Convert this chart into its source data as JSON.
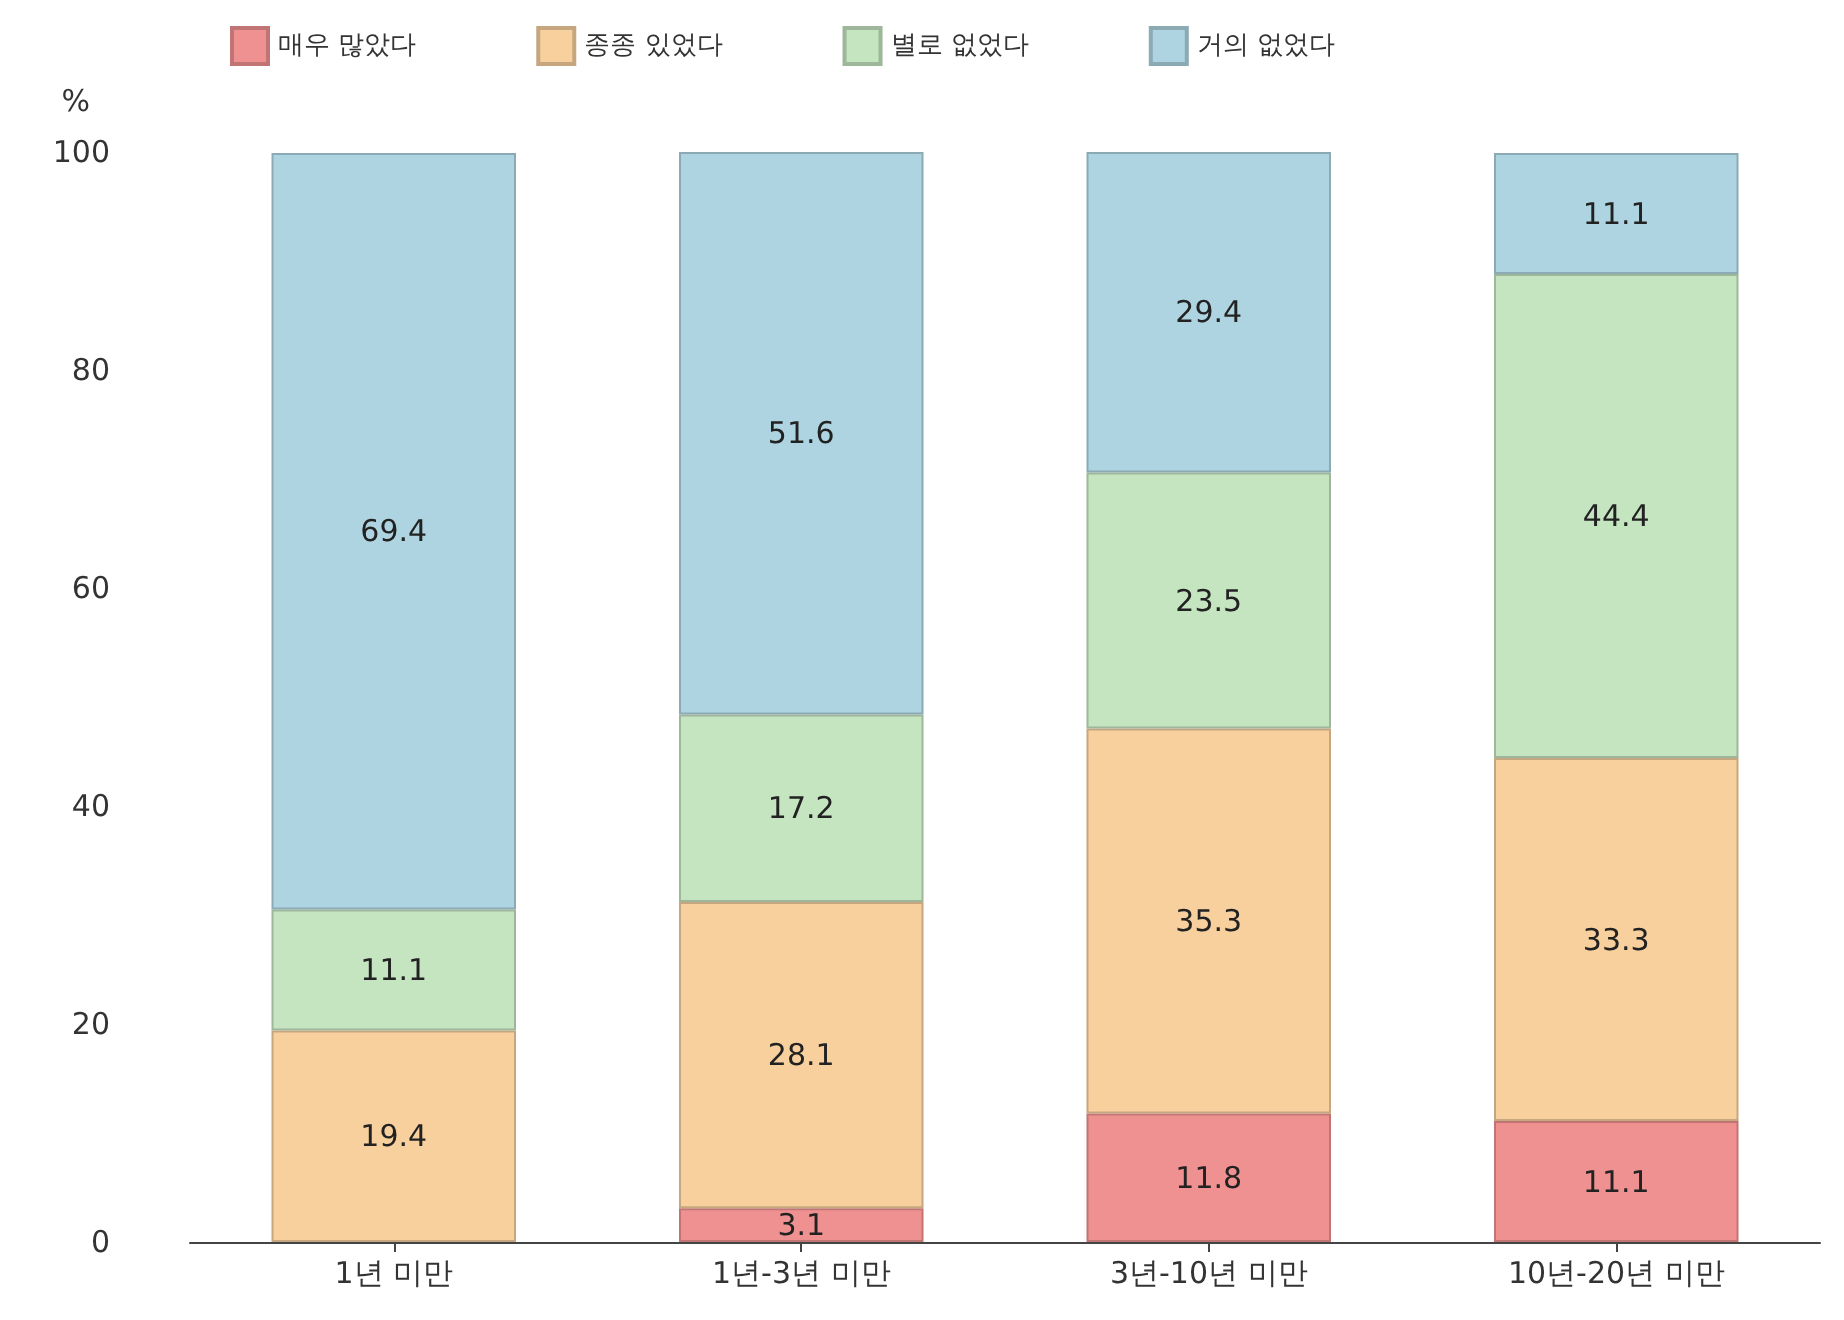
{
  "chart_data": {
    "type": "bar",
    "stacked": true,
    "ylabel": "%",
    "categories": [
      "1년 미만",
      "1년-3년 미만",
      "3년-10년 미만",
      "10년-20년 미만"
    ],
    "series": [
      {
        "name": "매우 많았다",
        "color": "#f09191",
        "values": [
          null,
          3.1,
          11.8,
          11.1
        ]
      },
      {
        "name": "종종 있었다",
        "color": "#f8d09e",
        "values": [
          19.4,
          28.1,
          35.3,
          33.3
        ]
      },
      {
        "name": "별로 없었다",
        "color": "#c5e4c0",
        "values": [
          11.1,
          17.2,
          23.5,
          44.4
        ]
      },
      {
        "name": "거의 없었다",
        "color": "#aed4e1",
        "values": [
          69.4,
          51.6,
          29.4,
          11.1
        ]
      }
    ],
    "ylim": [
      0,
      100
    ],
    "yticks": [
      0,
      20,
      40,
      60,
      80,
      100
    ],
    "grid": false,
    "legend": "top left",
    "data_labels": true
  }
}
